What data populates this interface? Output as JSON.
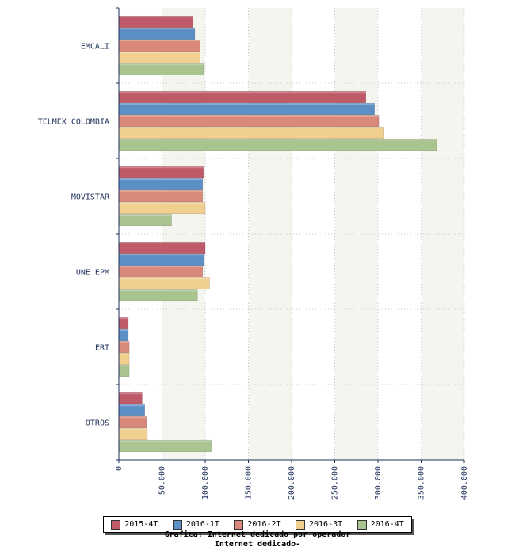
{
  "chart_data": {
    "type": "bar",
    "orientation": "horizontal",
    "title": "Grafica: Internet dedicado por operador",
    "subtitle": "Internet dedicado-",
    "categories": [
      "EMCALI",
      "TELMEX COLOMBIA",
      "MOVISTAR",
      "UNE EPM",
      "ERT",
      "OTROS"
    ],
    "series": [
      {
        "name": "2015-4T",
        "color": "#bf5a68",
        "values": [
          86000,
          286000,
          98000,
          100000,
          11000,
          27000
        ]
      },
      {
        "name": "2016-1T",
        "color": "#5b8fc6",
        "values": [
          88000,
          296000,
          97000,
          99000,
          11000,
          30000
        ]
      },
      {
        "name": "2016-2T",
        "color": "#d9897a",
        "values": [
          94000,
          301000,
          97000,
          97000,
          12000,
          32000
        ]
      },
      {
        "name": "2016-3T",
        "color": "#f0cf8f",
        "values": [
          94000,
          307000,
          100000,
          105000,
          12000,
          33000
        ]
      },
      {
        "name": "2016-4T",
        "color": "#a9c48f",
        "values": [
          98000,
          368000,
          61000,
          91000,
          12000,
          107000
        ]
      }
    ],
    "xlim": [
      0,
      400000
    ],
    "xticks": [
      "0",
      "50.000",
      "100.000",
      "150.000",
      "200.000",
      "250.000",
      "300.000",
      "350.000",
      "400.000"
    ],
    "grid": true,
    "legend_position": "bottom"
  }
}
